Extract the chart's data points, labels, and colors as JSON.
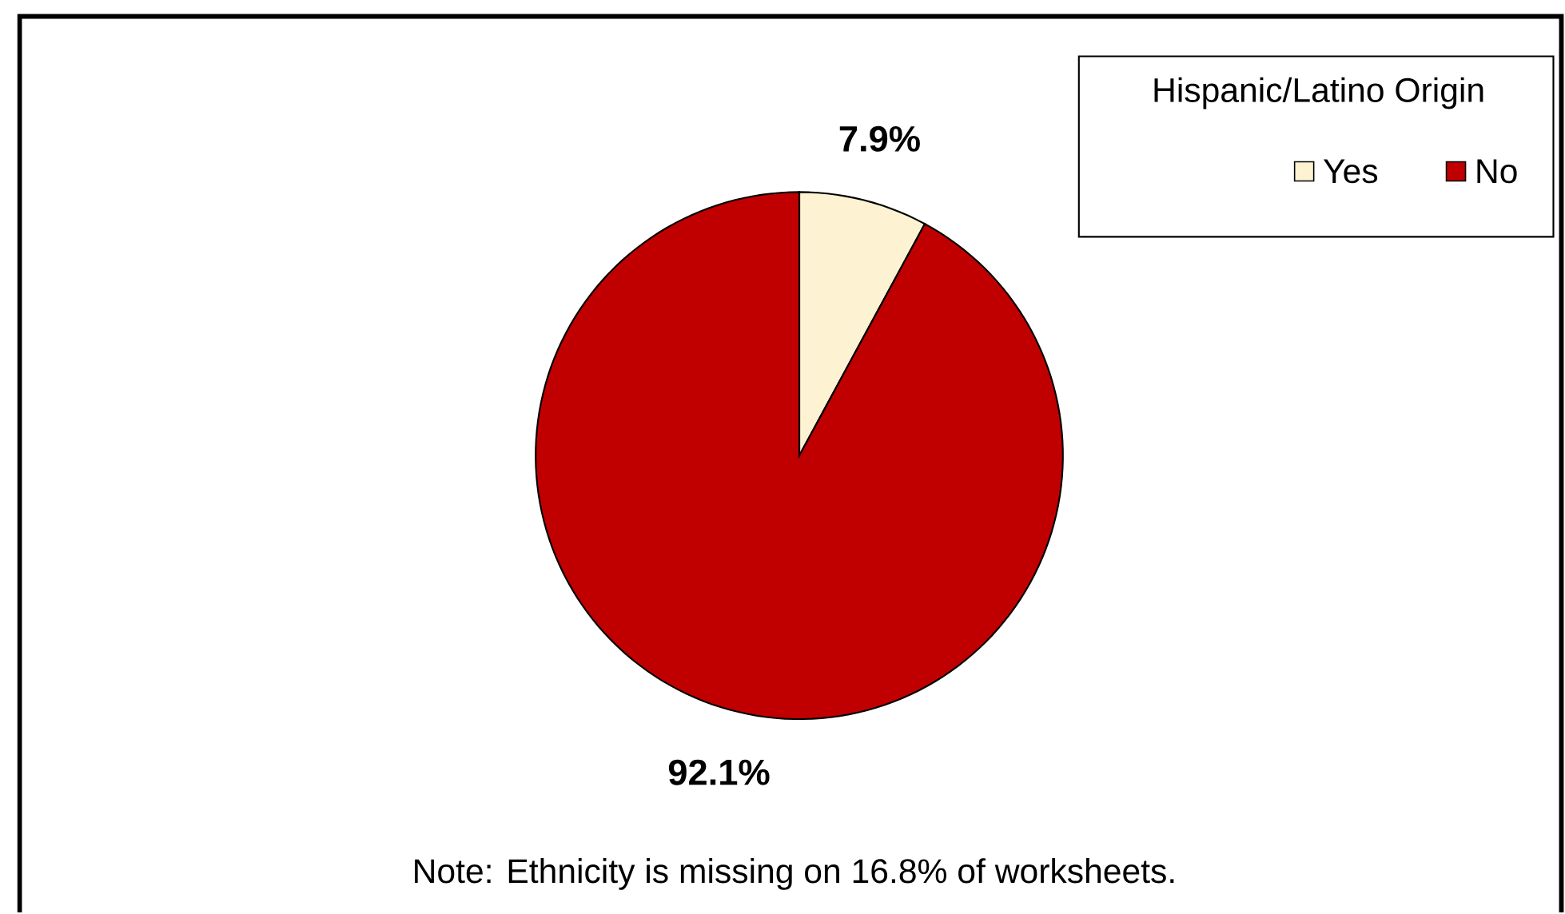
{
  "chart_data": {
    "type": "pie",
    "categories": [
      "Yes",
      "No"
    ],
    "values": [
      7.9,
      92.1
    ],
    "colors": [
      "#fdf2d2",
      "#c00000"
    ],
    "value_labels": [
      "7.9%",
      "92.1%"
    ],
    "legend_title": "Hispanic/Latino Origin",
    "legend": "top right",
    "annotations": [
      "Note: Ethnicity is missing on 16.8% of worksheets."
    ]
  }
}
